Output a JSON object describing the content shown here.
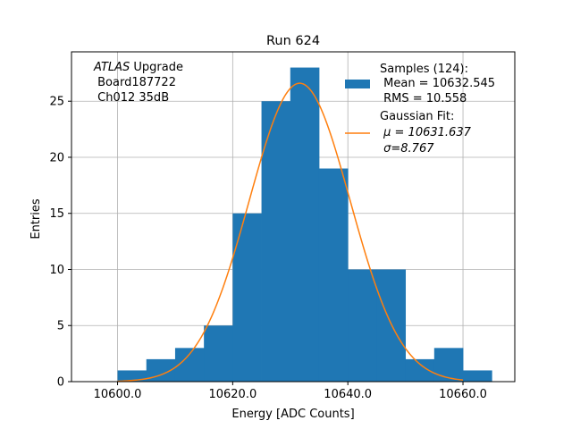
{
  "chart_data": {
    "type": "bar",
    "title": "Run 624",
    "xlabel": "Energy [ADC Counts]",
    "ylabel": "Entries",
    "xlim": [
      10592.0,
      10669.0
    ],
    "ylim": [
      0,
      29.4
    ],
    "grid": true,
    "x_ticks": [
      10600.0,
      10620.0,
      10640.0,
      10660.0
    ],
    "x_tick_labels": [
      "10600.0",
      "10620.0",
      "10640.0",
      "10660.0"
    ],
    "y_ticks": [
      0,
      5,
      10,
      15,
      20,
      25
    ],
    "y_tick_labels": [
      "0",
      "5",
      "10",
      "15",
      "20",
      "25"
    ],
    "bin_edges": [
      10600,
      10605,
      10610,
      10615,
      10620,
      10625,
      10630,
      10635,
      10640,
      10645,
      10650,
      10655,
      10660,
      10665
    ],
    "values": [
      1,
      2,
      3,
      5,
      15,
      25,
      28,
      19,
      10,
      10,
      2,
      3,
      1
    ],
    "annotation": {
      "italic": "ATLAS",
      "rest": " Upgrade",
      "line2": " Board187722",
      "line3": " Ch012 35dB"
    },
    "fit": {
      "mu": 10631.637,
      "sigma": 8.767,
      "amplitude": 26.6,
      "x_range": [
        10600,
        10660
      ]
    },
    "legend": {
      "placement": "top-right",
      "samples_label": "Samples (124):",
      "mean_label": " Mean = 10632.545",
      "rms_label": " RMS = 10.558",
      "fit_label": "Gaussian Fit:",
      "mu_label": " μ = 10631.637",
      "sigma_label": " σ=8.767"
    },
    "colors": {
      "bars": "#1f77b4",
      "fit": "#ff7f0e",
      "grid": "#b0b0b0"
    }
  }
}
